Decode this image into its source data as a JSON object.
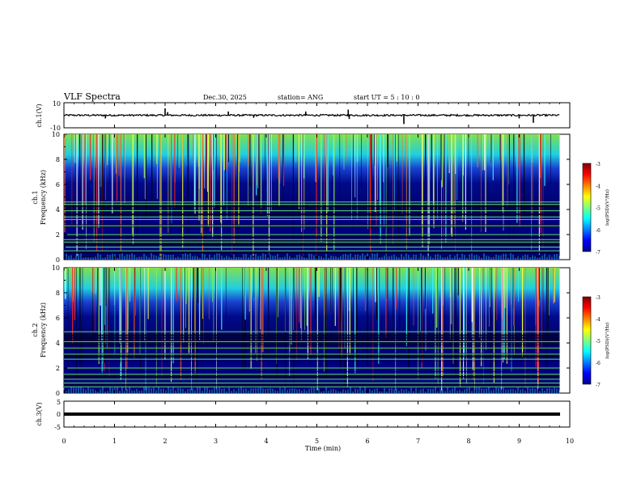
{
  "header": {
    "title": "VLF Spectra",
    "date": "Dec.30, 2025",
    "station": "station= ANG",
    "start": "start  UT  =   5 : 10 : 0"
  },
  "chart_data": [
    {
      "id": "ch1-waveform",
      "type": "line",
      "ylabel": "ch.1(V)",
      "ylim": [
        -10,
        10
      ],
      "y_tick_labels": [
        "10",
        "-10"
      ],
      "xlim": [
        0,
        10
      ],
      "baseline": 0,
      "end_time": 9.8,
      "spikes": [
        {
          "t": 0.82,
          "v": -2.5
        },
        {
          "t": 2.0,
          "v": 5.5
        },
        {
          "t": 2.05,
          "v": 2.5
        },
        {
          "t": 3.25,
          "v": 3.0
        },
        {
          "t": 3.75,
          "v": -2.0
        },
        {
          "t": 4.78,
          "v": 3.0
        },
        {
          "t": 5.62,
          "v": 4.5
        },
        {
          "t": 5.64,
          "v": -3.0
        },
        {
          "t": 6.72,
          "v": -7.0
        },
        {
          "t": 9.0,
          "v": -2.5
        },
        {
          "t": 9.28,
          "v": -6.0
        }
      ]
    },
    {
      "id": "ch1-spectrogram",
      "type": "heatmap",
      "channel_label": "ch.1",
      "ylabel": "Frequency (kHz)",
      "ylim": [
        0,
        10
      ],
      "y_tick_labels": [
        "0",
        "2",
        "4",
        "6",
        "8",
        "10"
      ],
      "xlim": [
        0,
        10
      ],
      "end_time": 9.8,
      "colorbar": {
        "label": "log(PSD)(V²/Hz)",
        "range": [
          -7,
          -3
        ],
        "tick_labels": [
          "-3",
          "-4",
          "-5",
          "-6",
          "-7"
        ]
      },
      "green_lines_khz": [
        4.4,
        4.6,
        3.9,
        3.4,
        3.2,
        2.7,
        2.0,
        1.6,
        1.4,
        1.0,
        0.7
      ]
    },
    {
      "id": "ch2-spectrogram",
      "type": "heatmap",
      "channel_label": "ch.2",
      "ylabel": "Frequency (kHz)",
      "ylim": [
        0,
        10
      ],
      "y_tick_labels": [
        "0",
        "2",
        "4",
        "6",
        "8",
        "10"
      ],
      "xlim": [
        0,
        10
      ],
      "end_time": 9.8,
      "colorbar": {
        "label": "log(PSD)(V²/Hz)",
        "range": [
          -7,
          -3
        ],
        "tick_labels": [
          "-3",
          "-4",
          "-5",
          "-6",
          "-7"
        ]
      },
      "green_lines_khz": [
        4.9,
        4.1,
        3.6,
        3.1,
        2.7,
        2.0,
        1.5,
        1.1,
        0.8,
        0.5
      ]
    },
    {
      "id": "ch3-waveform",
      "type": "line",
      "ylabel": "ch.3(V)",
      "ylim": [
        -5,
        5
      ],
      "y_tick_labels": [
        "5",
        "0",
        "-5"
      ],
      "xlim": [
        0,
        10
      ],
      "baseline": 0,
      "end_time": 9.8,
      "spikes": []
    }
  ],
  "x_axis": {
    "label": "Time (min)",
    "tick_labels": [
      "0",
      "1",
      "2",
      "3",
      "4",
      "5",
      "6",
      "7",
      "8",
      "9",
      "10"
    ]
  },
  "colors": {
    "background": "#000080",
    "trace": "#000000"
  }
}
